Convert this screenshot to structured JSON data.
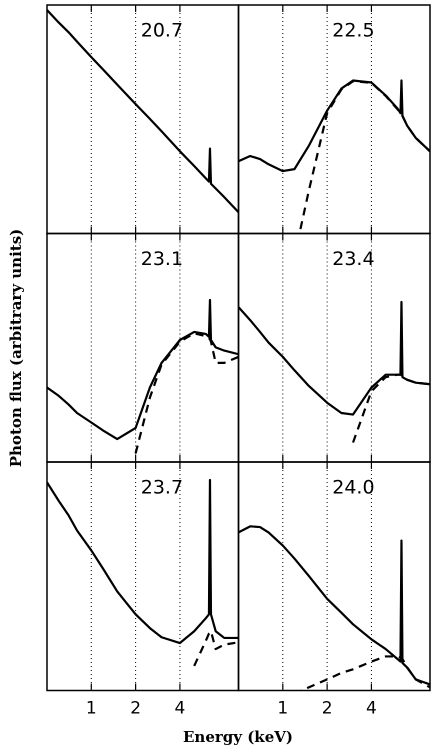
{
  "x_label": "Energy (keV)",
  "y_label": "Photon flux (arbitrary units)",
  "chart_data": [
    {
      "type": "line",
      "label": "20.7",
      "xscale": "log",
      "yscale": "log",
      "xlim": [
        0.5,
        10
      ],
      "ylim": [
        0.01,
        10
      ],
      "xticks": [
        1,
        2,
        4
      ],
      "grid": true,
      "x": [
        0.5,
        0.6,
        0.7,
        0.8,
        1,
        1.2,
        1.5,
        2,
        2.5,
        3,
        4,
        5,
        6,
        6.3,
        6.4,
        6.5,
        7,
        8,
        10
      ],
      "series": [
        {
          "color": "#000000",
          "dash": false,
          "values": [
            8.6,
            5.9,
            4.4,
            3.3,
            2.07,
            1.43,
            0.9,
            0.5,
            0.32,
            0.22,
            0.12,
            0.077,
            0.053,
            0.048,
            0.13,
            0.045,
            0.039,
            0.03,
            0.019
          ]
        }
      ]
    },
    {
      "type": "line",
      "label": "22.5",
      "xscale": "log",
      "yscale": "log",
      "xlim": [
        0.5,
        10
      ],
      "ylim": [
        0.01,
        10
      ],
      "xticks": [
        1,
        2,
        4
      ],
      "grid": true,
      "x": [
        0.5,
        0.6,
        0.7,
        0.8,
        1,
        1.2,
        1.5,
        2,
        2.5,
        3,
        4,
        5,
        6,
        6.3,
        6.4,
        6.5,
        7,
        8,
        10
      ],
      "series": [
        {
          "color": "#000000",
          "dash": false,
          "values": [
            0.089,
            0.104,
            0.095,
            0.081,
            0.066,
            0.07,
            0.141,
            0.41,
            0.8,
            1.02,
            0.96,
            0.65,
            0.44,
            0.38,
            1.02,
            0.35,
            0.26,
            0.18,
            0.12
          ]
        },
        {
          "color": "#000000",
          "dash": true,
          "values": [
            null,
            null,
            null,
            null,
            null,
            0.005,
            0.036,
            0.38,
            0.78,
            1.0,
            0.95,
            0.64,
            0.43,
            0.38,
            0.37,
            0.35,
            0.26,
            0.18,
            0.12
          ]
        }
      ]
    },
    {
      "type": "line",
      "label": "23.1",
      "xscale": "log",
      "yscale": "log",
      "xlim": [
        0.5,
        10
      ],
      "ylim": [
        0.01,
        10
      ],
      "xticks": [
        1,
        2,
        4
      ],
      "grid": true,
      "x": [
        0.5,
        0.6,
        0.7,
        0.8,
        1,
        1.2,
        1.5,
        2,
        2.5,
        3,
        4,
        5,
        6,
        6.3,
        6.4,
        6.5,
        7,
        8,
        10
      ],
      "series": [
        {
          "color": "#000000",
          "dash": false,
          "values": [
            0.095,
            0.074,
            0.057,
            0.044,
            0.033,
            0.026,
            0.02,
            0.028,
            0.095,
            0.2,
            0.4,
            0.51,
            0.48,
            0.44,
            1.34,
            0.4,
            0.32,
            0.29,
            0.26
          ]
        },
        {
          "color": "#000000",
          "dash": true,
          "values": [
            null,
            null,
            null,
            null,
            null,
            null,
            null,
            0.013,
            0.07,
            0.19,
            0.38,
            0.49,
            0.45,
            0.42,
            0.41,
            0.38,
            0.2,
            0.2,
            0.24
          ]
        }
      ]
    },
    {
      "type": "line",
      "label": "23.4",
      "xscale": "log",
      "yscale": "log",
      "xlim": [
        0.5,
        10
      ],
      "ylim": [
        0.01,
        10
      ],
      "xticks": [
        1,
        2,
        4
      ],
      "grid": true,
      "x": [
        0.5,
        0.6,
        0.7,
        0.8,
        1,
        1.2,
        1.5,
        2,
        2.5,
        3,
        4,
        5,
        6,
        6.3,
        6.4,
        6.5,
        7,
        8,
        10
      ],
      "series": [
        {
          "color": "#000000",
          "dash": false,
          "values": [
            1.08,
            0.73,
            0.51,
            0.37,
            0.24,
            0.16,
            0.1,
            0.06,
            0.044,
            0.042,
            0.095,
            0.14,
            0.14,
            0.14,
            1.26,
            0.13,
            0.12,
            0.11,
            0.105
          ]
        },
        {
          "color": "#000000",
          "dash": true,
          "values": [
            null,
            null,
            null,
            null,
            null,
            null,
            null,
            null,
            null,
            0.018,
            0.085,
            0.13,
            0.14,
            0.14,
            0.14,
            0.13,
            0.12,
            0.11,
            0.105
          ]
        }
      ]
    },
    {
      "type": "line",
      "label": "23.7",
      "xscale": "log",
      "yscale": "log",
      "xlim": [
        0.5,
        10
      ],
      "ylim": [
        0.01,
        10
      ],
      "xticks": [
        1,
        2,
        4
      ],
      "grid": true,
      "x": [
        0.5,
        0.6,
        0.7,
        0.8,
        1,
        1.2,
        1.5,
        2,
        2.5,
        3,
        4,
        5,
        6,
        6.3,
        6.4,
        6.5,
        7,
        8,
        10
      ],
      "series": [
        {
          "color": "#000000",
          "dash": false,
          "values": [
            5.4,
            3.1,
            2.0,
            1.26,
            0.69,
            0.4,
            0.2,
            0.1,
            0.066,
            0.05,
            0.042,
            0.06,
            0.089,
            0.1,
            5.8,
            0.1,
            0.06,
            0.049,
            0.049
          ]
        },
        {
          "color": "#000000",
          "dash": true,
          "values": [
            null,
            null,
            null,
            null,
            null,
            null,
            null,
            null,
            null,
            null,
            null,
            0.021,
            0.045,
            0.056,
            0.058,
            0.06,
            0.035,
            0.04,
            0.043
          ]
        }
      ]
    },
    {
      "type": "line",
      "label": "24.0",
      "xscale": "log",
      "yscale": "log",
      "xlim": [
        0.5,
        10
      ],
      "ylim": [
        0.01,
        10
      ],
      "xticks": [
        1,
        2,
        4
      ],
      "grid": true,
      "x": [
        0.5,
        0.6,
        0.7,
        0.8,
        1,
        1.2,
        1.5,
        2,
        2.5,
        3,
        4,
        5,
        6,
        6.3,
        6.4,
        6.5,
        7,
        8,
        10
      ],
      "series": [
        {
          "color": "#000000",
          "dash": false,
          "values": [
            1.19,
            1.43,
            1.4,
            1.19,
            0.8,
            0.54,
            0.32,
            0.16,
            0.105,
            0.074,
            0.047,
            0.035,
            0.026,
            0.024,
            0.93,
            0.023,
            0.02,
            0.014,
            0.012
          ]
        },
        {
          "color": "#000000",
          "dash": true,
          "values": [
            null,
            null,
            null,
            null,
            null,
            0.009,
            0.011,
            0.014,
            0.017,
            0.019,
            0.024,
            0.028,
            0.028,
            0.027,
            0.027,
            0.026,
            0.02,
            0.014,
            0.011
          ]
        }
      ]
    }
  ]
}
